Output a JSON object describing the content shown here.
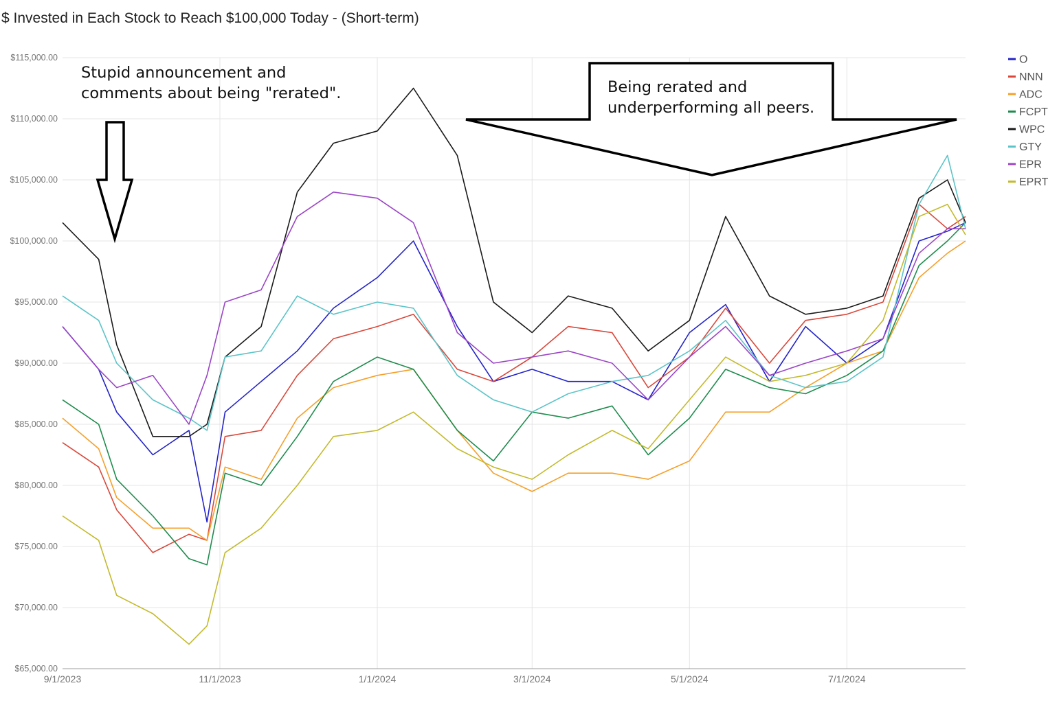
{
  "chart_data": {
    "type": "line",
    "title": "$ Invested in Each Stock to Reach $100,000 Today - (Short-term)",
    "xlabel": "",
    "ylabel": "",
    "ylim": [
      65000,
      115000
    ],
    "xlim": [
      "2023-09-01",
      "2024-08-16"
    ],
    "grid": true,
    "legend_position": "right",
    "y_ticks": [
      "$65,000.00",
      "$70,000.00",
      "$75,000.00",
      "$80,000.00",
      "$85,000.00",
      "$90,000.00",
      "$95,000.00",
      "$100,000.00",
      "$105,000.00",
      "$110,000.00",
      "$115,000.00"
    ],
    "x_ticks": [
      {
        "label": "9/1/2023",
        "date": "2023-09-01"
      },
      {
        "label": "11/1/2023",
        "date": "2023-11-01"
      },
      {
        "label": "1/1/2024",
        "date": "2024-01-01"
      },
      {
        "label": "3/1/2024",
        "date": "2024-03-01"
      },
      {
        "label": "5/1/2024",
        "date": "2024-05-01"
      },
      {
        "label": "7/1/2024",
        "date": "2024-07-01"
      }
    ],
    "x": [
      "2023-09-01",
      "2023-09-15",
      "2023-09-22",
      "2023-10-06",
      "2023-10-20",
      "2023-10-27",
      "2023-11-03",
      "2023-11-17",
      "2023-12-01",
      "2023-12-15",
      "2024-01-01",
      "2024-01-15",
      "2024-02-01",
      "2024-02-15",
      "2024-03-01",
      "2024-03-15",
      "2024-04-01",
      "2024-04-15",
      "2024-05-01",
      "2024-05-15",
      "2024-06-01",
      "2024-06-15",
      "2024-07-01",
      "2024-07-15",
      "2024-07-29",
      "2024-08-09",
      "2024-08-16"
    ],
    "series": [
      {
        "name": "O",
        "color": "#2323c8",
        "values": [
          93000,
          89500,
          86000,
          82500,
          84500,
          77000,
          86000,
          88500,
          91000,
          94500,
          97000,
          100000,
          93000,
          88500,
          89500,
          88500,
          88500,
          87000,
          92500,
          94800,
          88500,
          93000,
          90000,
          92000,
          100000,
          100800,
          101500
        ]
      },
      {
        "name": "NNN",
        "color": "#d9483b",
        "values": [
          83500,
          81500,
          78000,
          74500,
          76000,
          75500,
          84000,
          84500,
          89000,
          92000,
          93000,
          94000,
          89500,
          88500,
          90500,
          93000,
          92500,
          88000,
          90500,
          94500,
          90000,
          93500,
          94000,
          95000,
          103000,
          101000,
          102000
        ]
      },
      {
        "name": "ADC",
        "color": "#f5a02a",
        "values": [
          85500,
          83000,
          79000,
          76500,
          76500,
          75500,
          81500,
          80500,
          85500,
          88000,
          89000,
          89500,
          84500,
          81000,
          79500,
          81000,
          81000,
          80500,
          82000,
          86000,
          86000,
          88000,
          90000,
          91000,
          97000,
          99000,
          100000
        ]
      },
      {
        "name": "FCPT",
        "color": "#1e8c4d",
        "values": [
          87000,
          85000,
          80500,
          77500,
          74000,
          73500,
          81000,
          80000,
          84000,
          88500,
          90500,
          89500,
          84500,
          82000,
          86000,
          85500,
          86500,
          82500,
          85500,
          89500,
          88000,
          87500,
          89000,
          91000,
          98000,
          100000,
          101500
        ]
      },
      {
        "name": "WPC",
        "color": "#1a1a1a",
        "values": [
          101500,
          98500,
          91500,
          84000,
          84000,
          85000,
          90500,
          93000,
          104000,
          108000,
          109000,
          112500,
          107000,
          95000,
          92500,
          95500,
          94500,
          91000,
          93500,
          102000,
          95500,
          94000,
          94500,
          95500,
          103500,
          105000,
          101500
        ]
      },
      {
        "name": "GTY",
        "color": "#5bc4c8",
        "values": [
          95500,
          93500,
          90000,
          87000,
          85500,
          84500,
          90500,
          91000,
          95500,
          94000,
          95000,
          94500,
          89000,
          87000,
          86000,
          87500,
          88500,
          89000,
          91000,
          93500,
          89000,
          88000,
          88500,
          90500,
          103000,
          107000,
          101000
        ]
      },
      {
        "name": "EPR",
        "color": "#9b45c6",
        "values": [
          93000,
          89500,
          88000,
          89000,
          85000,
          89000,
          95000,
          96000,
          102000,
          104000,
          103500,
          101500,
          92500,
          90000,
          90500,
          91000,
          90000,
          87000,
          90500,
          93000,
          89000,
          90000,
          91000,
          92000,
          99000,
          101000,
          101000
        ]
      },
      {
        "name": "EPRT",
        "color": "#c3ba2c",
        "values": [
          77500,
          75500,
          71000,
          69500,
          67000,
          68500,
          74500,
          76500,
          80000,
          84000,
          84500,
          86000,
          83000,
          81500,
          80500,
          82500,
          84500,
          83000,
          87000,
          90500,
          88500,
          89000,
          90000,
          93500,
          102000,
          103000,
          100500
        ]
      }
    ],
    "annotations": [
      {
        "text": "Stupid announcement and comments about being \"rerated\".",
        "lines": [
          "Stupid announcement and",
          "comments about being \"rerated\"."
        ]
      },
      {
        "text": "Being rerated and underperforming all peers.",
        "lines": [
          "Being rerated and",
          "underperforming all peers."
        ]
      }
    ]
  }
}
